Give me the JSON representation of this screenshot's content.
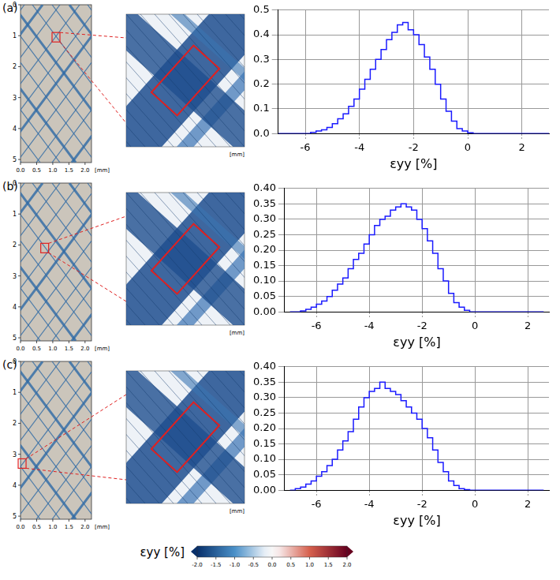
{
  "chart_data": [
    {
      "type": "histogram",
      "panel": "(a)",
      "x_label": "εyy [%]",
      "color": "#1a1aff",
      "grid": true,
      "xlim": [
        -7,
        3
      ],
      "xticks": [
        -6,
        -4,
        -2,
        0,
        2
      ],
      "ylim": [
        0,
        0.5
      ],
      "yticks": [
        {
          "value": 0,
          "label": "0.0"
        },
        0.1,
        0.2,
        0.3,
        0.4,
        0.5
      ],
      "bins": [
        -7,
        -6.8,
        -6.6,
        -6.4,
        -6.2,
        -6,
        -5.8,
        -5.6,
        -5.4,
        -5.2,
        -5,
        -4.8,
        -4.6,
        -4.4,
        -4.2,
        -4,
        -3.8,
        -3.6,
        -3.4,
        -3.2,
        -3,
        -2.8,
        -2.6,
        -2.4,
        -2.2,
        -2,
        -1.8,
        -1.6,
        -1.4,
        -1.2,
        -1,
        -0.8,
        -0.6,
        -0.4,
        -0.2,
        0,
        0.2,
        0.4,
        0.6,
        0.8,
        1,
        1.2,
        1.4,
        1.6,
        1.8,
        2,
        2.2,
        2.4,
        2.6,
        2.8,
        3
      ],
      "values": [
        0,
        0,
        0,
        0,
        0,
        0,
        0,
        0.005,
        0.01,
        0.015,
        0.025,
        0.04,
        0.06,
        0.08,
        0.11,
        0.14,
        0.18,
        0.22,
        0.26,
        0.3,
        0.34,
        0.38,
        0.41,
        0.44,
        0.45,
        0.42,
        0.4,
        0.36,
        0.31,
        0.26,
        0.2,
        0.14,
        0.09,
        0.05,
        0.02,
        0.01,
        0.003,
        0,
        0,
        0,
        0,
        0,
        0,
        0,
        0,
        0,
        0,
        0,
        0,
        0
      ]
    },
    {
      "type": "histogram",
      "panel": "(b)",
      "x_label": "εyy [%]",
      "color": "#1a1aff",
      "grid": true,
      "xlim": [
        -7.2,
        2.8
      ],
      "xticks": [
        -6,
        -4,
        -2,
        0,
        2
      ],
      "ylim": [
        0,
        0.4
      ],
      "yticks": [
        {
          "value": 0,
          "label": "0.00"
        },
        0.05,
        {
          "value": 0.1,
          "label": "0.10"
        },
        0.15,
        {
          "value": 0.2,
          "label": "0.20"
        },
        0.25,
        {
          "value": 0.3,
          "label": "0.30"
        },
        0.35,
        {
          "value": 0.4,
          "label": "0.40"
        }
      ],
      "bins": [
        -7,
        -6.8,
        -6.6,
        -6.4,
        -6.2,
        -6,
        -5.8,
        -5.6,
        -5.4,
        -5.2,
        -5,
        -4.8,
        -4.6,
        -4.4,
        -4.2,
        -4,
        -3.8,
        -3.6,
        -3.4,
        -3.2,
        -3,
        -2.8,
        -2.6,
        -2.4,
        -2.2,
        -2,
        -1.8,
        -1.6,
        -1.4,
        -1.2,
        -1,
        -0.8,
        -0.6,
        -0.4,
        -0.2,
        0,
        0.2,
        0.4,
        0.6,
        0.8,
        1,
        1.2,
        1.4,
        1.6,
        1.8,
        2,
        2.2,
        2.4,
        2.6
      ],
      "values": [
        0,
        0,
        0,
        0.003,
        0.008,
        0.015,
        0.025,
        0.035,
        0.05,
        0.07,
        0.09,
        0.11,
        0.14,
        0.17,
        0.19,
        0.22,
        0.25,
        0.28,
        0.3,
        0.31,
        0.33,
        0.34,
        0.35,
        0.34,
        0.33,
        0.3,
        0.27,
        0.23,
        0.19,
        0.14,
        0.1,
        0.06,
        0.03,
        0.015,
        0.005,
        0,
        0,
        0,
        0,
        0,
        0,
        0,
        0,
        0,
        0,
        0,
        0,
        0
      ]
    },
    {
      "type": "histogram",
      "panel": "(c)",
      "x_label": "εyy [%]",
      "color": "#1a1aff",
      "grid": true,
      "xlim": [
        -7.2,
        2.8
      ],
      "xticks": [
        -6,
        -4,
        -2,
        0,
        2
      ],
      "ylim": [
        0,
        0.4
      ],
      "yticks": [
        {
          "value": 0,
          "label": "0.00"
        },
        0.05,
        {
          "value": 0.1,
          "label": "0.10"
        },
        0.15,
        {
          "value": 0.2,
          "label": "0.20"
        },
        0.25,
        {
          "value": 0.3,
          "label": "0.30"
        },
        0.35,
        {
          "value": 0.4,
          "label": "0.40"
        }
      ],
      "bins": [
        -7,
        -6.8,
        -6.6,
        -6.4,
        -6.2,
        -6,
        -5.8,
        -5.6,
        -5.4,
        -5.2,
        -5,
        -4.8,
        -4.6,
        -4.4,
        -4.2,
        -4,
        -3.8,
        -3.6,
        -3.4,
        -3.2,
        -3,
        -2.8,
        -2.6,
        -2.4,
        -2.2,
        -2,
        -1.8,
        -1.6,
        -1.4,
        -1.2,
        -1,
        -0.8,
        -0.6,
        -0.4,
        -0.2,
        0,
        0.2,
        0.4,
        0.6,
        0.8,
        1,
        1.2,
        1.4,
        1.6,
        1.8,
        2,
        2.2,
        2.4,
        2.6
      ],
      "values": [
        0,
        0,
        0.005,
        0.01,
        0.02,
        0.03,
        0.045,
        0.06,
        0.08,
        0.1,
        0.13,
        0.16,
        0.19,
        0.23,
        0.27,
        0.3,
        0.32,
        0.33,
        0.35,
        0.33,
        0.32,
        0.31,
        0.29,
        0.27,
        0.25,
        0.23,
        0.2,
        0.17,
        0.13,
        0.09,
        0.06,
        0.03,
        0.015,
        0.005,
        0.002,
        0,
        0,
        0,
        0,
        0,
        0,
        0,
        0,
        0,
        0,
        0,
        0,
        0
      ]
    }
  ],
  "overview_map": {
    "unit": "[mm]",
    "xlim": [
      0,
      2.2
    ],
    "ylim": [
      0,
      5.1
    ],
    "xticks": [
      {
        "value": 0,
        "label": "0.0"
      },
      0.5,
      {
        "value": 1,
        "label": "1.0"
      },
      1.5,
      {
        "value": 2,
        "label": "2.0"
      }
    ],
    "yticks": [
      0,
      1,
      2,
      3,
      4,
      5
    ]
  },
  "zoom_unit": "[mm]",
  "colorbar": {
    "label": "εyy [%]",
    "range": [
      -2,
      2
    ],
    "ticks": [
      {
        "value": -2,
        "label": "-2.0"
      },
      -1.5,
      {
        "value": -1,
        "label": "-1.0"
      },
      -0.5,
      {
        "value": 0,
        "label": "0.0"
      },
      0.5,
      {
        "value": 1,
        "label": "1.0"
      },
      1.5,
      {
        "value": 2,
        "label": "2.0"
      }
    ]
  }
}
